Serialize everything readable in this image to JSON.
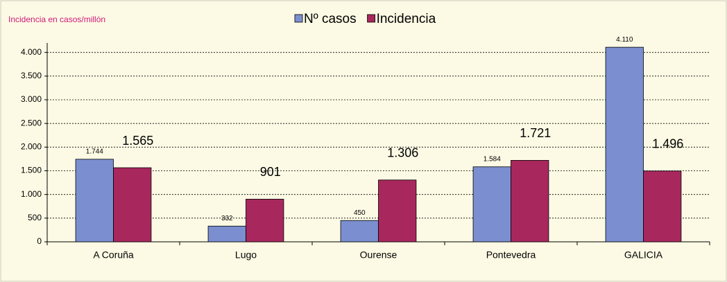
{
  "chart_data": {
    "type": "bar",
    "title": "Incidencia en casos/millón",
    "categories": [
      "A Coruña",
      "Lugo",
      "Ourense",
      "Pontevedra",
      "GALICIA"
    ],
    "series": [
      {
        "name": "Nº casos",
        "color": "#7b8fd0",
        "values": [
          1744,
          332,
          450,
          1584,
          4110
        ],
        "value_labels": [
          "1.744",
          "332",
          "450",
          "1.584",
          "4.110"
        ]
      },
      {
        "name": "Incidencia",
        "color": "#a8285e",
        "values": [
          1565,
          901,
          1306,
          1721,
          1496
        ],
        "value_labels": [
          "1.565",
          "901",
          "1.306",
          "1.721",
          "1.496"
        ]
      }
    ],
    "ylim": [
      0,
      4200
    ],
    "yticks": [
      0,
      500,
      {
        "value": 1000,
        "label": "1.000"
      },
      {
        "value": 1500,
        "label": "1.500"
      },
      {
        "value": 2000,
        "label": "2.000"
      },
      {
        "value": 2500,
        "label": "2.500"
      },
      {
        "value": 3000,
        "label": "3.000"
      },
      {
        "value": 3500,
        "label": "3.500"
      },
      {
        "value": 4000,
        "label": "4.000"
      }
    ],
    "grid": true,
    "legend": "top"
  }
}
